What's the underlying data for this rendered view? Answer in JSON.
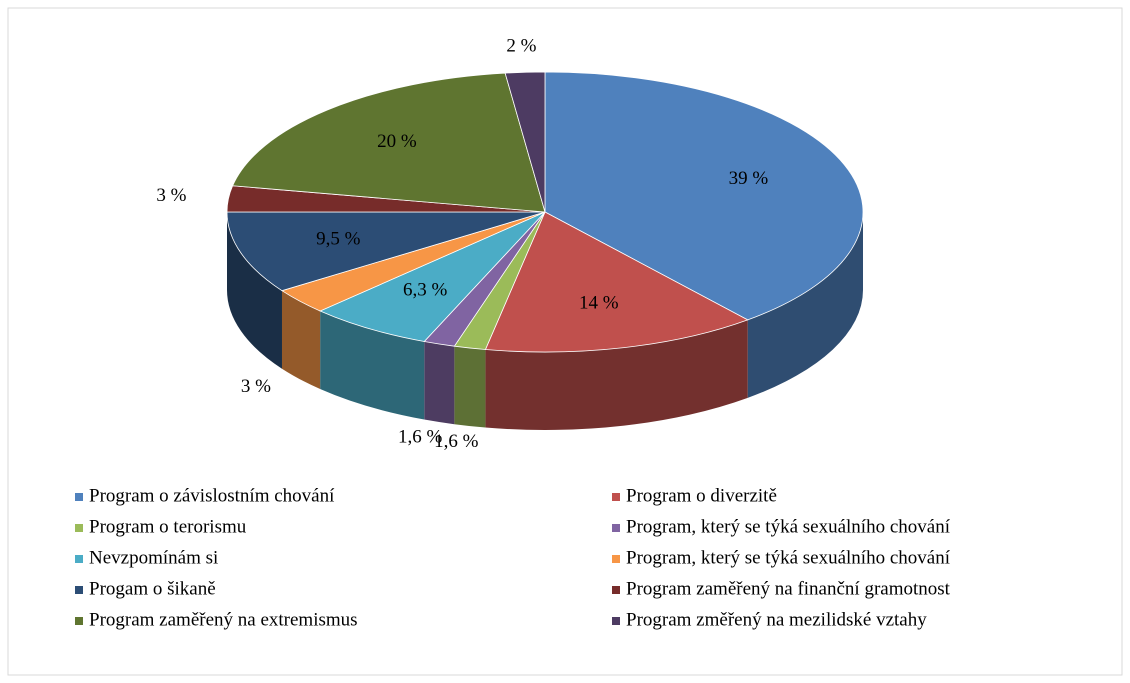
{
  "chart_data": {
    "type": "pie",
    "categories": [
      "Program o závislostním chování",
      "Program o diverzitě",
      "Program o terorismu",
      "Program, který se týká sexuálního chování",
      "Nevzpomínám si",
      "Program, který se týká sexuálního chování",
      "Progam o šikaně",
      "Program zaměřený na finanční gramotnost",
      "Program zaměřený na extremismus",
      "Program změřený na mezilidské vztahy"
    ],
    "values": [
      39,
      14,
      1.6,
      1.6,
      6.3,
      3,
      9.5,
      3,
      20,
      2
    ],
    "value_labels": [
      "39 %",
      "14 %",
      "1,6 %",
      "1,6 %",
      "6,3 %",
      "3 %",
      "9,5 %",
      "3 %",
      "20 %",
      "2 %"
    ],
    "colors": [
      "#4f81bd",
      "#c0504d",
      "#9bbb59",
      "#8064a2",
      "#4bacc6",
      "#f79646",
      "#2c4d75",
      "#772c2a",
      "#5f7530",
      "#4d3b62"
    ],
    "legend": "bottom"
  }
}
